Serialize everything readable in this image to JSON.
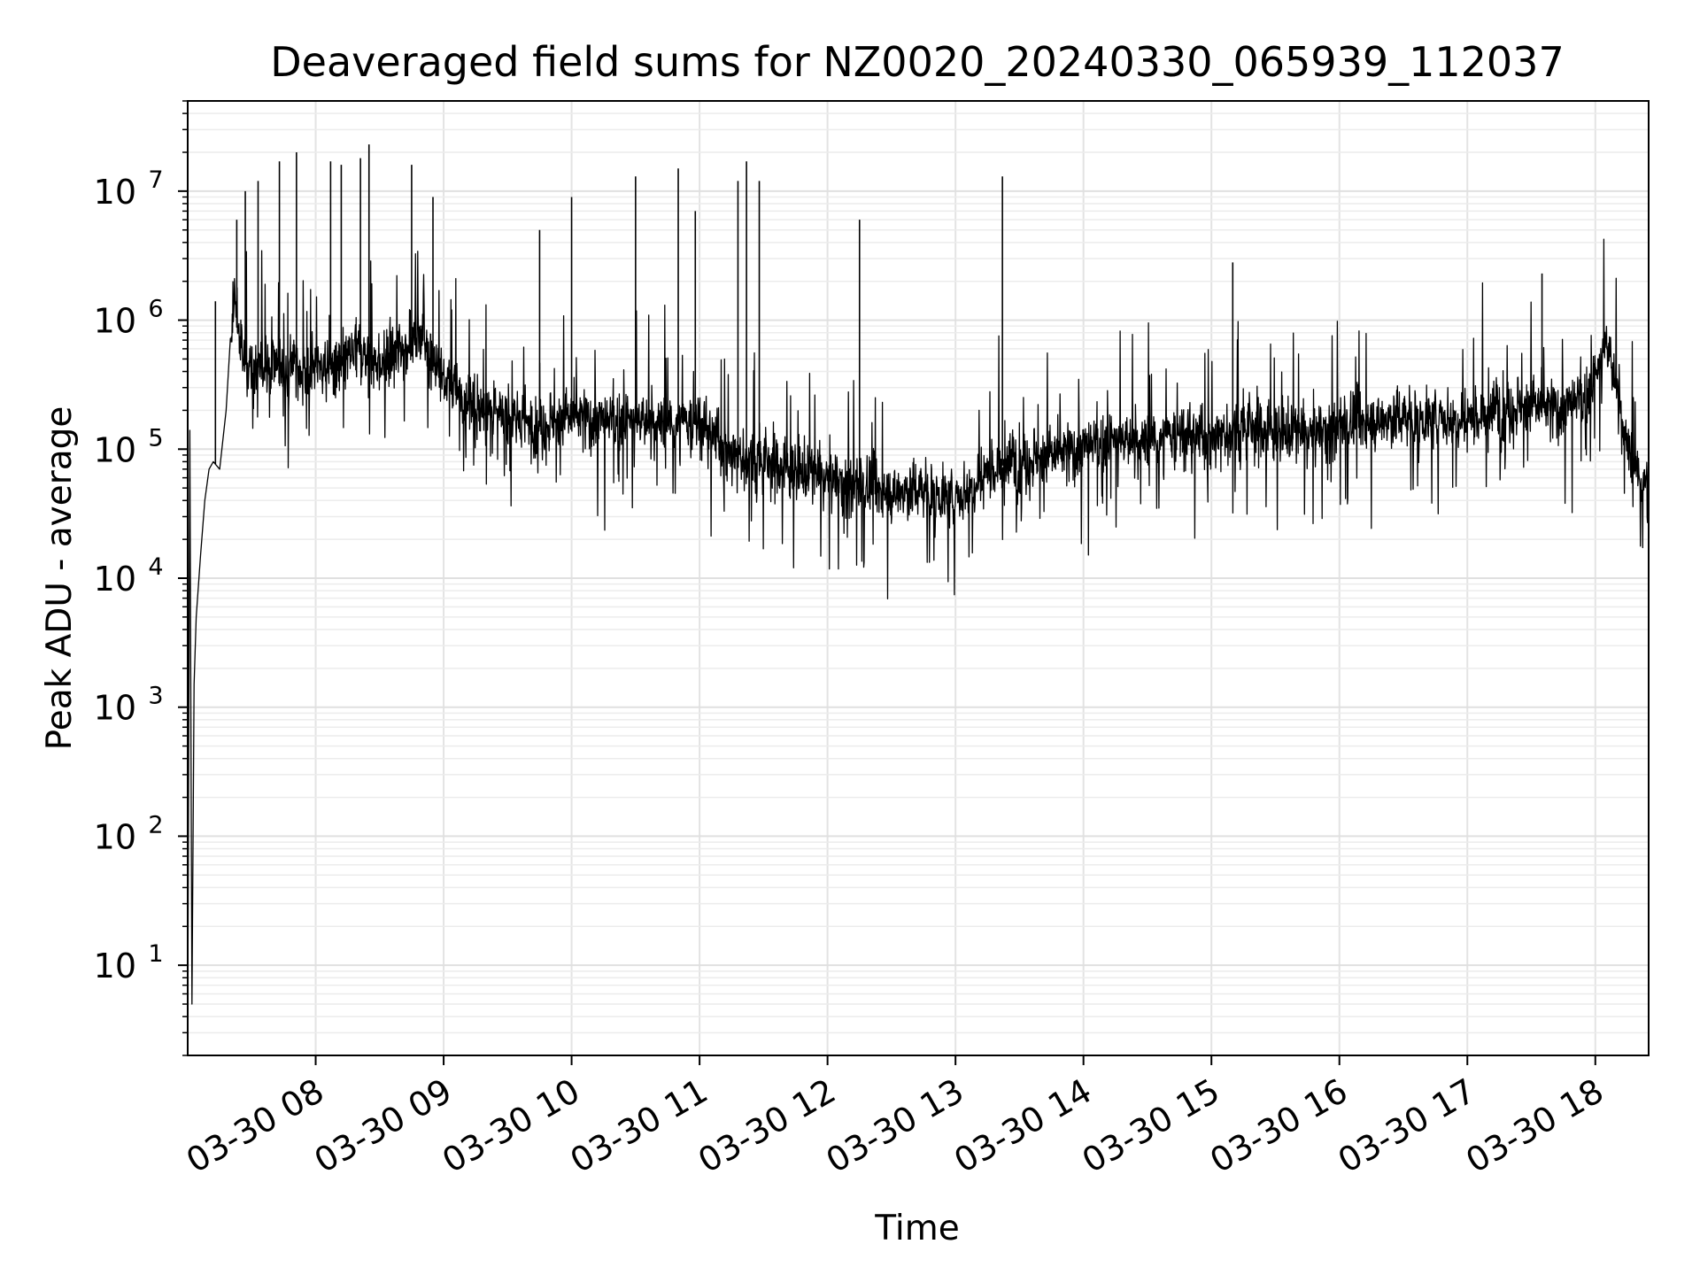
{
  "chart_data": {
    "type": "line",
    "title": "Deaveraged field sums for NZ0020_20240330_065939_112037",
    "xlabel": "Time",
    "ylabel": "Peak ADU - average",
    "yscale": "log",
    "ylim": [
      2,
      50000000
    ],
    "xlim": [
      "2024-03-30 07:00",
      "2024-03-30 18:25"
    ],
    "grid": true,
    "x_ticks": [
      {
        "at": "2024-03-30 08:00",
        "label": "03-30 08"
      },
      {
        "at": "2024-03-30 09:00",
        "label": "03-30 09"
      },
      {
        "at": "2024-03-30 10:00",
        "label": "03-30 10"
      },
      {
        "at": "2024-03-30 11:00",
        "label": "03-30 11"
      },
      {
        "at": "2024-03-30 12:00",
        "label": "03-30 12"
      },
      {
        "at": "2024-03-30 13:00",
        "label": "03-30 13"
      },
      {
        "at": "2024-03-30 14:00",
        "label": "03-30 14"
      },
      {
        "at": "2024-03-30 15:00",
        "label": "03-30 15"
      },
      {
        "at": "2024-03-30 16:00",
        "label": "03-30 16"
      },
      {
        "at": "2024-03-30 17:00",
        "label": "03-30 17"
      },
      {
        "at": "2024-03-30 18:00",
        "label": "03-30 18"
      }
    ],
    "y_ticks": [
      {
        "value": 10,
        "base": "10",
        "exp": "1"
      },
      {
        "value": 100,
        "base": "10",
        "exp": "2"
      },
      {
        "value": 1000,
        "base": "10",
        "exp": "3"
      },
      {
        "value": 10000,
        "base": "10",
        "exp": "4"
      },
      {
        "value": 100000,
        "base": "10",
        "exp": "5"
      },
      {
        "value": 1000000,
        "base": "10",
        "exp": "6"
      },
      {
        "value": 10000000,
        "base": "10",
        "exp": "7"
      }
    ],
    "series": [
      {
        "color": "#000000",
        "x": [
          "2024-03-30 07:00",
          "2024-03-30 07:01",
          "2024-03-30 07:02",
          "2024-03-30 07:03",
          "2024-03-30 07:04",
          "2024-03-30 07:06",
          "2024-03-30 07:08",
          "2024-03-30 07:10",
          "2024-03-30 07:12",
          "2024-03-30 07:15",
          "2024-03-30 07:18",
          "2024-03-30 07:20",
          "2024-03-30 07:22",
          "2024-03-30 07:24",
          "2024-03-30 07:26",
          "2024-03-30 07:30",
          "2024-03-30 07:35",
          "2024-03-30 07:40",
          "2024-03-30 07:45",
          "2024-03-30 07:50",
          "2024-03-30 07:55",
          "2024-03-30 08:00",
          "2024-03-30 08:10",
          "2024-03-30 08:20",
          "2024-03-30 08:30",
          "2024-03-30 08:40",
          "2024-03-30 08:50",
          "2024-03-30 09:00",
          "2024-03-30 09:15",
          "2024-03-30 09:30",
          "2024-03-30 09:45",
          "2024-03-30 10:00",
          "2024-03-30 10:15",
          "2024-03-30 10:30",
          "2024-03-30 10:45",
          "2024-03-30 11:00",
          "2024-03-30 11:15",
          "2024-03-30 11:30",
          "2024-03-30 11:45",
          "2024-03-30 12:00",
          "2024-03-30 12:15",
          "2024-03-30 12:30",
          "2024-03-30 12:45",
          "2024-03-30 13:00",
          "2024-03-30 13:15",
          "2024-03-30 13:30",
          "2024-03-30 13:45",
          "2024-03-30 14:00",
          "2024-03-30 14:15",
          "2024-03-30 14:30",
          "2024-03-30 14:45",
          "2024-03-30 15:00",
          "2024-03-30 15:15",
          "2024-03-30 15:30",
          "2024-03-30 15:45",
          "2024-03-30 16:00",
          "2024-03-30 16:15",
          "2024-03-30 16:30",
          "2024-03-30 16:45",
          "2024-03-30 17:00",
          "2024-03-30 17:15",
          "2024-03-30 17:30",
          "2024-03-30 17:45",
          "2024-03-30 17:55",
          "2024-03-30 18:00",
          "2024-03-30 18:05",
          "2024-03-30 18:10",
          "2024-03-30 18:15",
          "2024-03-30 18:20",
          "2024-03-30 18:25"
        ],
        "y": [
          3,
          140000,
          5,
          1500,
          5000,
          15000,
          40000,
          70000,
          80000,
          70000,
          200000,
          500000,
          1500000,
          800000,
          500000,
          400000,
          450000,
          500000,
          400000,
          500000,
          350000,
          450000,
          400000,
          600000,
          450000,
          600000,
          800000,
          350000,
          200000,
          180000,
          150000,
          180000,
          160000,
          170000,
          150000,
          160000,
          90000,
          80000,
          70000,
          60000,
          50000,
          45000,
          50000,
          40000,
          70000,
          80000,
          90000,
          100000,
          120000,
          110000,
          130000,
          120000,
          150000,
          140000,
          130000,
          150000,
          160000,
          180000,
          170000,
          180000,
          200000,
          220000,
          200000,
          250000,
          350000,
          700000,
          300000,
          100000,
          60000,
          55000
        ]
      }
    ],
    "spikes": [
      {
        "x": "2024-03-30 07:13",
        "y": 1400000
      },
      {
        "x": "2024-03-30 07:23",
        "y": 6000000
      },
      {
        "x": "2024-03-30 07:27",
        "y": 10000000
      },
      {
        "x": "2024-03-30 07:33",
        "y": 12000000
      },
      {
        "x": "2024-03-30 07:43",
        "y": 17000000
      },
      {
        "x": "2024-03-30 07:51",
        "y": 20000000
      },
      {
        "x": "2024-03-30 08:07",
        "y": 17000000
      },
      {
        "x": "2024-03-30 08:12",
        "y": 16000000
      },
      {
        "x": "2024-03-30 08:21",
        "y": 18000000
      },
      {
        "x": "2024-03-30 08:25",
        "y": 23000000
      },
      {
        "x": "2024-03-30 08:45",
        "y": 16000000
      },
      {
        "x": "2024-03-30 08:55",
        "y": 9000000
      },
      {
        "x": "2024-03-30 09:45",
        "y": 5000000
      },
      {
        "x": "2024-03-30 10:00",
        "y": 9000000
      },
      {
        "x": "2024-03-30 10:30",
        "y": 13000000
      },
      {
        "x": "2024-03-30 10:50",
        "y": 15000000
      },
      {
        "x": "2024-03-30 10:58",
        "y": 7000000
      },
      {
        "x": "2024-03-30 11:18",
        "y": 12000000
      },
      {
        "x": "2024-03-30 11:22",
        "y": 17000000
      },
      {
        "x": "2024-03-30 11:28",
        "y": 12000000
      },
      {
        "x": "2024-03-30 12:15",
        "y": 6000000
      },
      {
        "x": "2024-03-30 13:22",
        "y": 13000000
      },
      {
        "x": "2024-03-30 15:10",
        "y": 2800000
      },
      {
        "x": "2024-03-30 17:35",
        "y": 2300000
      }
    ]
  }
}
